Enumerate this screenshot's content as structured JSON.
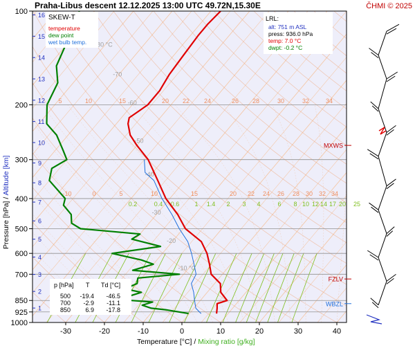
{
  "header": {
    "title": "Praha-Libus descent 12.12.2025 13:00 UTC 49.72N,15.30E",
    "copyright": "ČHMI © 2025"
  },
  "legend": {
    "title": "SKEW-T",
    "items": [
      {
        "label": "temperature",
        "color": "#e00000"
      },
      {
        "label": "dew point",
        "color": "#008000"
      },
      {
        "label": "wet bulb temp.",
        "color": "#1f6fdc"
      }
    ]
  },
  "lrl_box": {
    "title": "LRL:",
    "lines": [
      {
        "text": "alt: 751 m ASL",
        "color": "#2030c0"
      },
      {
        "text": "press: 936.0 hPa",
        "color": "#000000"
      },
      {
        "text": "temp: 7.0 °C",
        "color": "#e00000"
      },
      {
        "text": "dwpt: -0.2 °C",
        "color": "#008000"
      }
    ]
  },
  "levels_table": {
    "headers": [
      "p [hPa]",
      "T",
      "Td [°C]"
    ],
    "rows": [
      [
        "500",
        "-19.4",
        "-46.5"
      ],
      [
        "700",
        "-2.9",
        "-11.1"
      ],
      [
        "850",
        "6.9",
        "-17.8"
      ]
    ]
  },
  "markers": [
    {
      "label": "MXWS",
      "pressure": 270,
      "color": "#c00000"
    },
    {
      "label": "FZLV",
      "pressure": 725,
      "color": "#c00000"
    },
    {
      "label": "WBZL",
      "pressure": 870,
      "color": "#1f6fdc"
    }
  ],
  "axis_titles": {
    "left_a": "Pressure [hPa]",
    "left_sep": " / ",
    "left_b": "Altitude [km]",
    "bottom_a": "Temperature [°C]",
    "bottom_sep": " / ",
    "bottom_b": "Mixing ratio [g/kg]"
  },
  "colors": {
    "temperature": "#e00000",
    "dewpoint": "#008000",
    "wetbulb": "#1f6fdc",
    "isotherm": "#f4c8a8",
    "dry_adiabat": "#f0a070",
    "mixing_ratio": "#80c020",
    "isobar": "#909090",
    "plot_bg": "#eeeefa",
    "altitude_label": "#2030c0",
    "isotherm_label": "#f09060",
    "isotherm_label_cold": "#a0a0a0"
  },
  "chart_data": {
    "type": "line",
    "title": "Praha-Libus descent 12.12.2025 13:00 UTC 49.72N,15.30E",
    "xlabel": "Temperature [°C] / Mixing ratio [g/kg]",
    "ylabel": "Pressure [hPa] / Altitude [km]",
    "xlim": [
      -37,
      50
    ],
    "ylim": [
      1000,
      100
    ],
    "yscale": "log",
    "skew": true,
    "grid": true,
    "x_ticks": [
      "-30",
      "-20",
      "-10",
      "0",
      "10",
      "20",
      "30",
      "40"
    ],
    "pressure_ticks": [
      "100",
      "200",
      "300",
      "400",
      "500",
      "600",
      "700",
      "850",
      "925",
      "1000"
    ],
    "altitude_ticks": [
      "1",
      "2",
      "3",
      "4",
      "5",
      "6",
      "7",
      "8",
      "9",
      "10",
      "11",
      "12",
      "13",
      "14",
      "15",
      "16"
    ],
    "isotherm_labels_cold": [
      "-80 °C",
      "-70",
      "-60",
      "-50",
      "-40",
      "-30",
      "-20",
      "-10 °C"
    ],
    "isotherm_labels_warm_row1": [
      "5",
      "10",
      "15",
      "20",
      "22",
      "24",
      "26",
      "28",
      "30",
      "32",
      "34"
    ],
    "isotherm_labels_warm_row2": [
      "-10",
      "0",
      "5",
      "10",
      "15",
      "20",
      "22",
      "24",
      "26",
      "28",
      "30",
      "32",
      "34"
    ],
    "mixing_ratio_labels": [
      "0.2",
      "0.4",
      "0.6",
      "1",
      "1.4",
      "2",
      "3",
      "4",
      "6",
      "8",
      "10",
      "12",
      "14",
      "17",
      "20",
      "25"
    ],
    "series": [
      {
        "name": "temperature",
        "points": [
          [
            936,
            7.0
          ],
          [
            900,
            6.0
          ],
          [
            870,
            5.0
          ],
          [
            850,
            6.9
          ],
          [
            800,
            3.5
          ],
          [
            750,
            1.5
          ],
          [
            700,
            -2.9
          ],
          [
            650,
            -5.5
          ],
          [
            600,
            -8.5
          ],
          [
            550,
            -12.5
          ],
          [
            500,
            -19.4
          ],
          [
            450,
            -24.5
          ],
          [
            400,
            -31
          ],
          [
            350,
            -37
          ],
          [
            300,
            -44
          ],
          [
            270,
            -50
          ],
          [
            250,
            -54
          ],
          [
            230,
            -57
          ],
          [
            220,
            -58
          ],
          [
            210,
            -57
          ],
          [
            200,
            -56
          ],
          [
            180,
            -56
          ],
          [
            160,
            -57
          ],
          [
            140,
            -57.5
          ],
          [
            120,
            -58
          ],
          [
            110,
            -58
          ],
          [
            100,
            -57.5
          ]
        ]
      },
      {
        "name": "dew point",
        "points": [
          [
            936,
            -0.2
          ],
          [
            910,
            -7
          ],
          [
            900,
            -11
          ],
          [
            880,
            -14
          ],
          [
            860,
            -12
          ],
          [
            850,
            -17.8
          ],
          [
            830,
            -20
          ],
          [
            800,
            -17
          ],
          [
            780,
            -22
          ],
          [
            750,
            -20
          ],
          [
            720,
            -21
          ],
          [
            700,
            -11.1
          ],
          [
            680,
            -24
          ],
          [
            650,
            -20
          ],
          [
            630,
            -24
          ],
          [
            600,
            -33
          ],
          [
            570,
            -22
          ],
          [
            540,
            -31
          ],
          [
            520,
            -30
          ],
          [
            500,
            -46.5
          ],
          [
            480,
            -50
          ],
          [
            450,
            -52
          ],
          [
            420,
            -56
          ],
          [
            400,
            -57
          ],
          [
            350,
            -65
          ],
          [
            320,
            -67
          ],
          [
            300,
            -65
          ],
          [
            280,
            -68
          ],
          [
            250,
            -73
          ],
          [
            230,
            -78
          ],
          [
            200,
            -82
          ],
          [
            170,
            -84
          ],
          [
            150,
            -88
          ],
          [
            130,
            -90
          ],
          [
            120,
            -92
          ],
          [
            110,
            -92
          ],
          [
            100,
            -94
          ]
        ]
      },
      {
        "name": "wet bulb temp.",
        "points": [
          [
            936,
            3.0
          ],
          [
            900,
            0.5
          ],
          [
            850,
            -1.5
          ],
          [
            800,
            -3.5
          ],
          [
            750,
            -6.0
          ],
          [
            700,
            -6.8
          ],
          [
            650,
            -9.5
          ],
          [
            600,
            -12.5
          ],
          [
            550,
            -16
          ],
          [
            500,
            -21
          ],
          [
            450,
            -26
          ],
          [
            400,
            -32
          ],
          [
            350,
            -38
          ],
          [
            330,
            -42
          ],
          [
            300,
            -45
          ]
        ]
      }
    ]
  }
}
